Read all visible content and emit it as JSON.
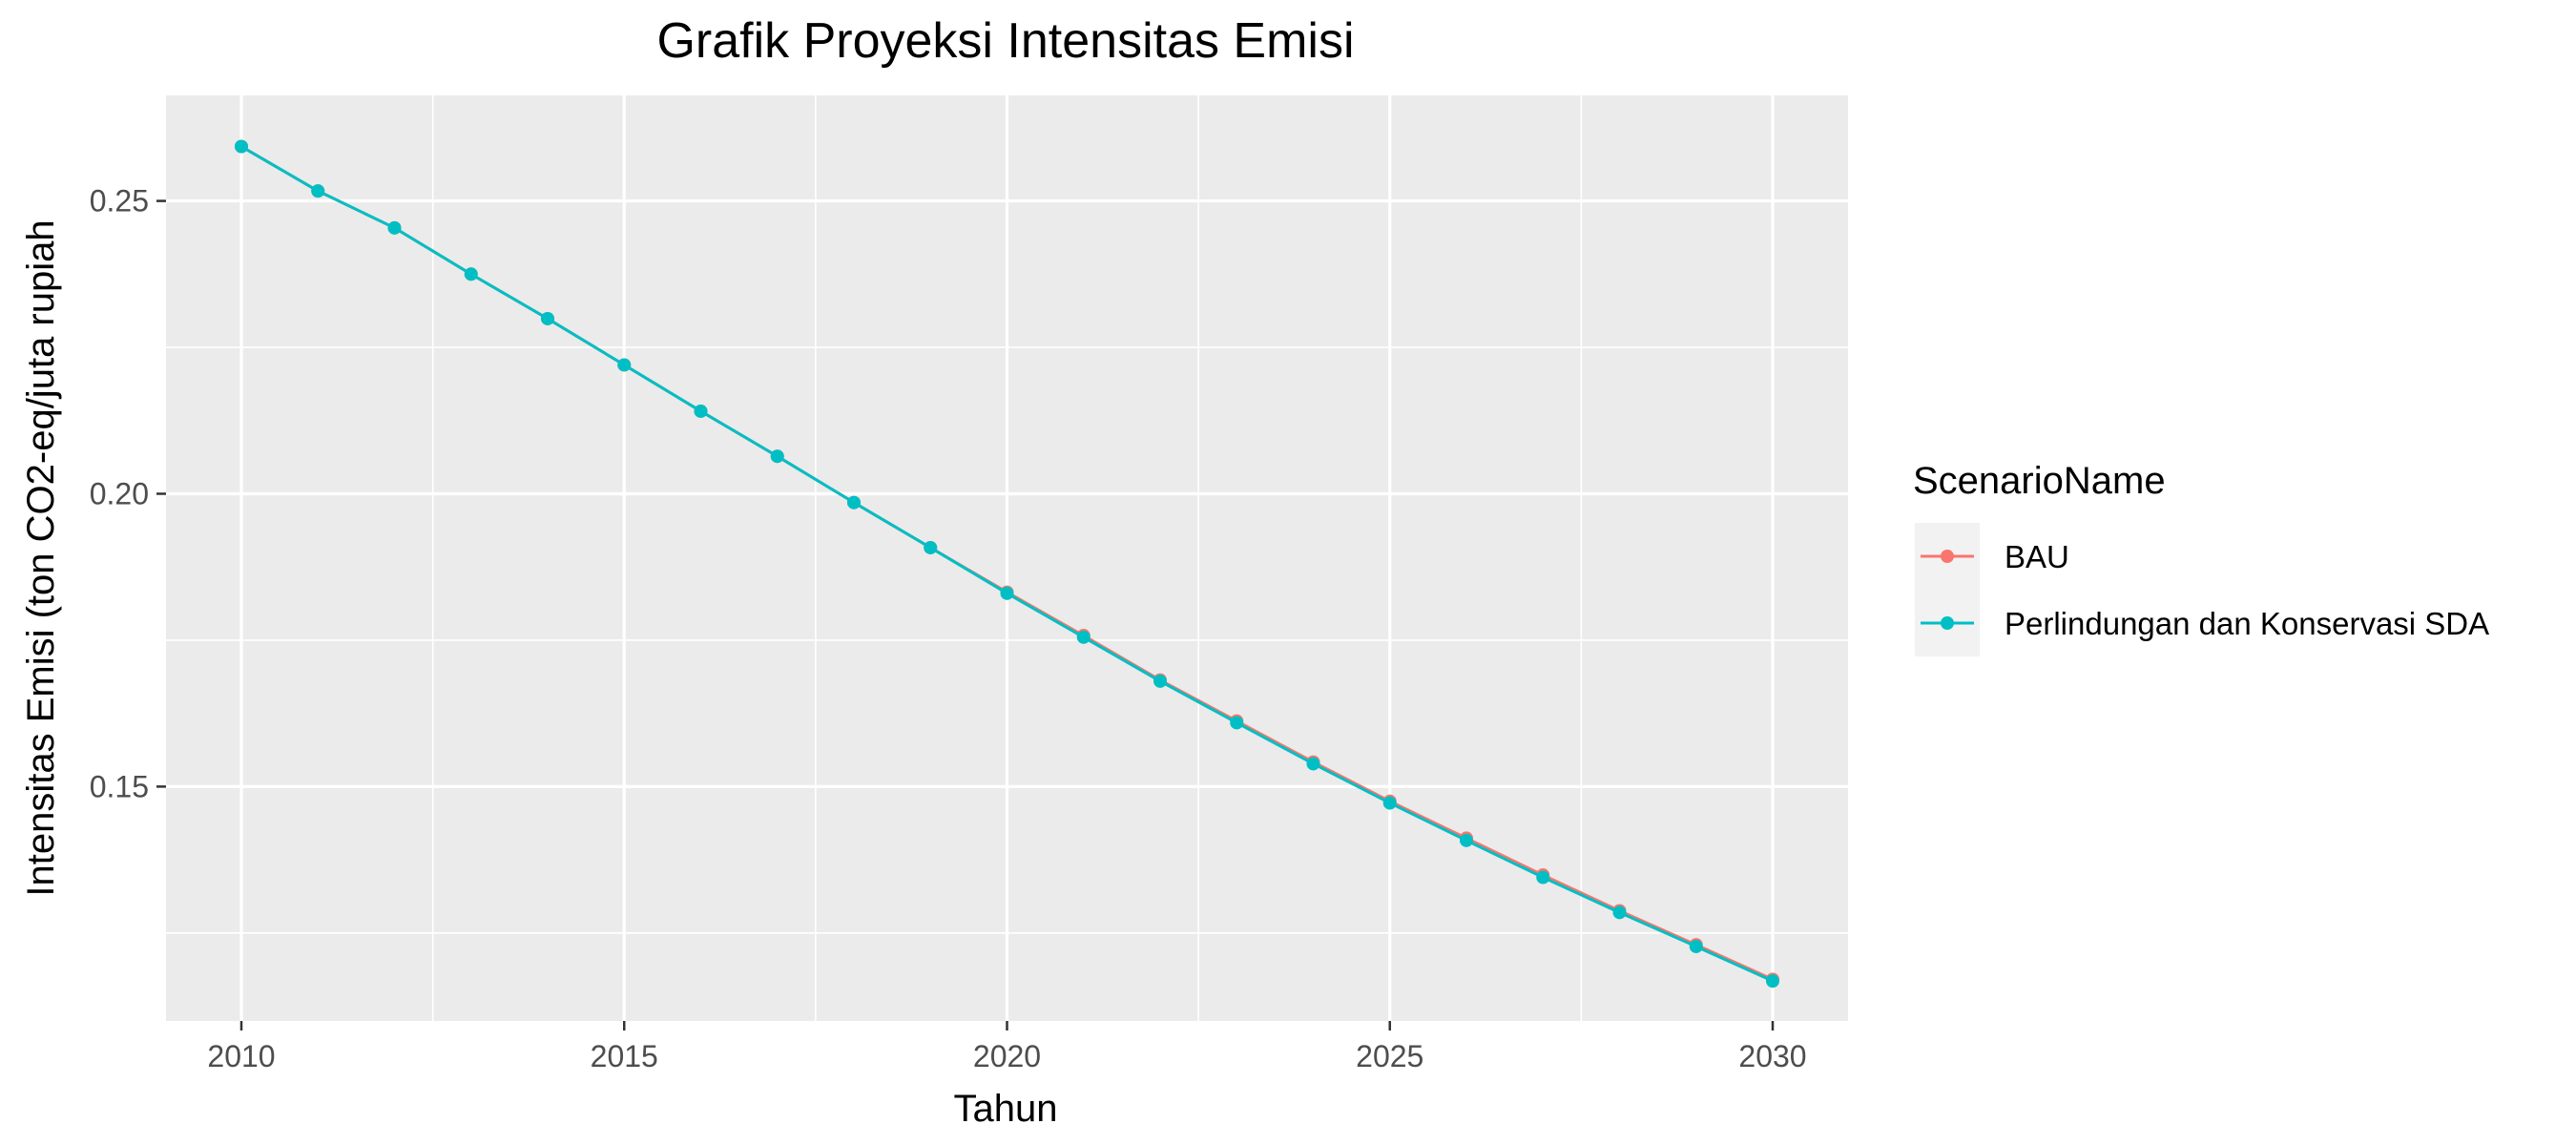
{
  "chart_data": {
    "type": "line",
    "title": "Grafik Proyeksi Intensitas Emisi",
    "xlabel": "Tahun",
    "ylabel": "Intensitas Emisi (ton CO2-eq/juta rupiah",
    "xlim": [
      2010,
      2030
    ],
    "ylim": [
      0.1165,
      0.2615
    ],
    "x_ticks": [
      2010,
      2015,
      2020,
      2025,
      2030
    ],
    "x_tick_labels": [
      "2010",
      "2015",
      "2020",
      "2025",
      "2030"
    ],
    "y_ticks": [
      0.15,
      0.2,
      0.25
    ],
    "y_tick_labels": [
      "0.15",
      "0.20",
      "0.25"
    ],
    "grid": true,
    "panel_background": "#ebebeb",
    "legend": {
      "title": "ScenarioName",
      "position": "right"
    },
    "x": [
      2010,
      2011,
      2012,
      2013,
      2014,
      2015,
      2016,
      2017,
      2018,
      2019,
      2020,
      2021,
      2022,
      2023,
      2024,
      2025,
      2026,
      2027,
      2028,
      2029,
      2030
    ],
    "series": [
      {
        "name": "BAU",
        "color": "#F8766D",
        "values": [
          0.2593,
          0.2517,
          0.2454,
          0.2375,
          0.2299,
          0.222,
          0.2141,
          0.2064,
          0.1985,
          0.1908,
          0.1832,
          0.1758,
          0.1682,
          0.1612,
          0.1542,
          0.1475,
          0.1412,
          0.1349,
          0.1288,
          0.123,
          0.1171
        ]
      },
      {
        "name": "Perlindungan dan Konservasi SDA",
        "color": "#00BFC4",
        "values": [
          0.2593,
          0.2517,
          0.2454,
          0.2375,
          0.2299,
          0.222,
          0.2141,
          0.2064,
          0.1985,
          0.1908,
          0.183,
          0.1755,
          0.168,
          0.1609,
          0.1539,
          0.1472,
          0.1408,
          0.1345,
          0.1285,
          0.1227,
          0.1168
        ]
      }
    ]
  }
}
